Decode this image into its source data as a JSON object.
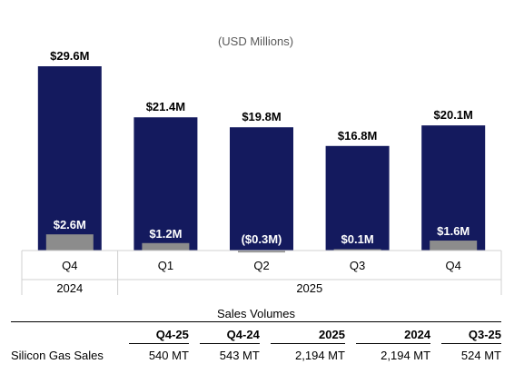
{
  "chart_data": {
    "type": "bar",
    "unit_note": "(USD Millions)",
    "categories": [
      "Q4",
      "Q1",
      "Q2",
      "Q3",
      "Q4"
    ],
    "groups": [
      {
        "label": "2024",
        "count": 1
      },
      {
        "label": "2025",
        "count": 4
      }
    ],
    "series": [
      {
        "values": [
          29.6,
          21.4,
          19.8,
          16.8,
          20.1
        ],
        "labels": [
          "$29.6M",
          "$21.4M",
          "$19.8M",
          "$16.8M",
          "$20.1M"
        ],
        "color": "#141a5e"
      },
      {
        "values": [
          2.6,
          1.2,
          -0.3,
          0.1,
          1.6
        ],
        "labels": [
          "$2.6M",
          "$1.2M",
          "($0.3M)",
          "$0.1M",
          "$1.6M"
        ],
        "color": "#8c8c8c"
      }
    ],
    "ylim": [
      0,
      30
    ]
  },
  "volumes": {
    "title": "Sales Volumes",
    "columns": [
      "Q4-25",
      "Q4-24",
      "2025",
      "2024",
      "Q3-25"
    ],
    "rows": [
      {
        "label": "Silicon Gas Sales",
        "values": [
          "540 MT",
          "543 MT",
          "2,194 MT",
          "2,194 MT",
          "524 MT"
        ]
      }
    ]
  }
}
